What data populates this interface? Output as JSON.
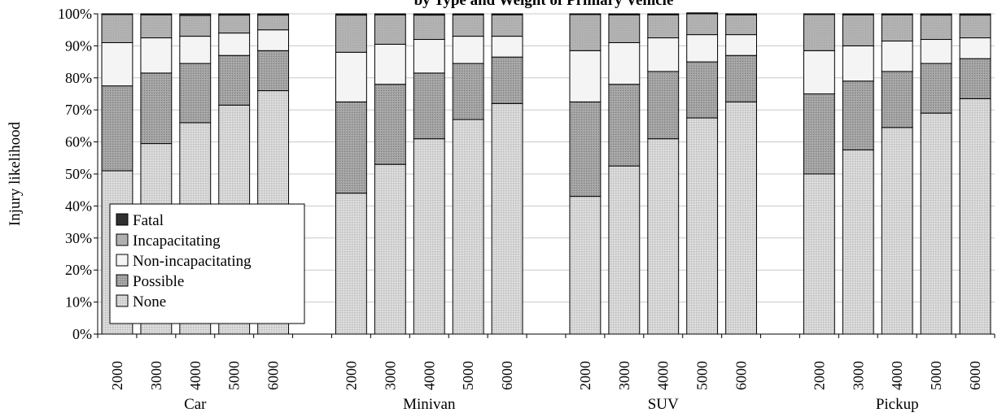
{
  "chart_data": {
    "type": "bar",
    "stacked": true,
    "title": "by Type and Weight of Primary Vehicle",
    "xlabel": "",
    "ylabel": "Injury likelihood",
    "ylim": [
      0,
      100
    ],
    "y_ticks": [
      "0%",
      "10%",
      "20%",
      "30%",
      "40%",
      "50%",
      "60%",
      "70%",
      "80%",
      "90%",
      "100%"
    ],
    "groups": [
      {
        "name": "Car",
        "categories": [
          "2000",
          "3000",
          "4000",
          "5000",
          "6000"
        ]
      },
      {
        "name": "Minivan",
        "categories": [
          "2000",
          "3000",
          "4000",
          "5000",
          "6000"
        ]
      },
      {
        "name": "SUV",
        "categories": [
          "2000",
          "3000",
          "4000",
          "5000",
          "6000"
        ]
      },
      {
        "name": "Pickup",
        "categories": [
          "2000",
          "3000",
          "4000",
          "5000",
          "6000"
        ]
      }
    ],
    "series": [
      {
        "name": "None",
        "values": [
          51,
          59.5,
          66,
          71.5,
          76,
          44,
          53,
          61,
          67,
          72,
          43,
          52.5,
          61,
          67.5,
          72.5,
          50,
          57.5,
          64.5,
          69,
          73.5
        ]
      },
      {
        "name": "Possible",
        "values": [
          26.5,
          22,
          18.5,
          15.5,
          12.5,
          28.5,
          25,
          20.5,
          17.5,
          14.5,
          29.5,
          25.5,
          21,
          17.5,
          14.5,
          25,
          21.5,
          17.5,
          15.5,
          12.5
        ]
      },
      {
        "name": "Non-incapacitating",
        "values": [
          13.5,
          11,
          8.5,
          7,
          6.5,
          15.5,
          12.5,
          10.5,
          8.5,
          6.5,
          16,
          13,
          10.5,
          8.5,
          6.5,
          13.5,
          11,
          9.5,
          7.5,
          6.5
        ]
      },
      {
        "name": "Incapacitating",
        "values": [
          8.8,
          7.2,
          6.5,
          5.6,
          4.6,
          11.6,
          9.2,
          7.6,
          6.7,
          6.7,
          11.3,
          8.7,
          7.2,
          6.5,
          6.2,
          11.3,
          9.7,
          8.2,
          7.6,
          7.1
        ]
      },
      {
        "name": "Fatal",
        "values": [
          0.2,
          0.3,
          0.5,
          0.4,
          0.4,
          0.4,
          0.3,
          0.4,
          0.3,
          0.3,
          0.2,
          0.3,
          0.3,
          0.3,
          0.3,
          0.2,
          0.3,
          0.3,
          0.4,
          0.4
        ]
      }
    ],
    "legend": {
      "placement": "lower-left inside plot",
      "entries": [
        "Fatal",
        "Incapacitating",
        "Non-incapacitating",
        "Possible",
        "None"
      ]
    },
    "colors": {
      "None": "#d6d6d6",
      "Possible": "#9e9e9e",
      "Non-incapacitating": "#f2f2f2",
      "Incapacitating": "#b0b0b0",
      "Fatal": "#303030"
    },
    "grid": "horizontal"
  }
}
